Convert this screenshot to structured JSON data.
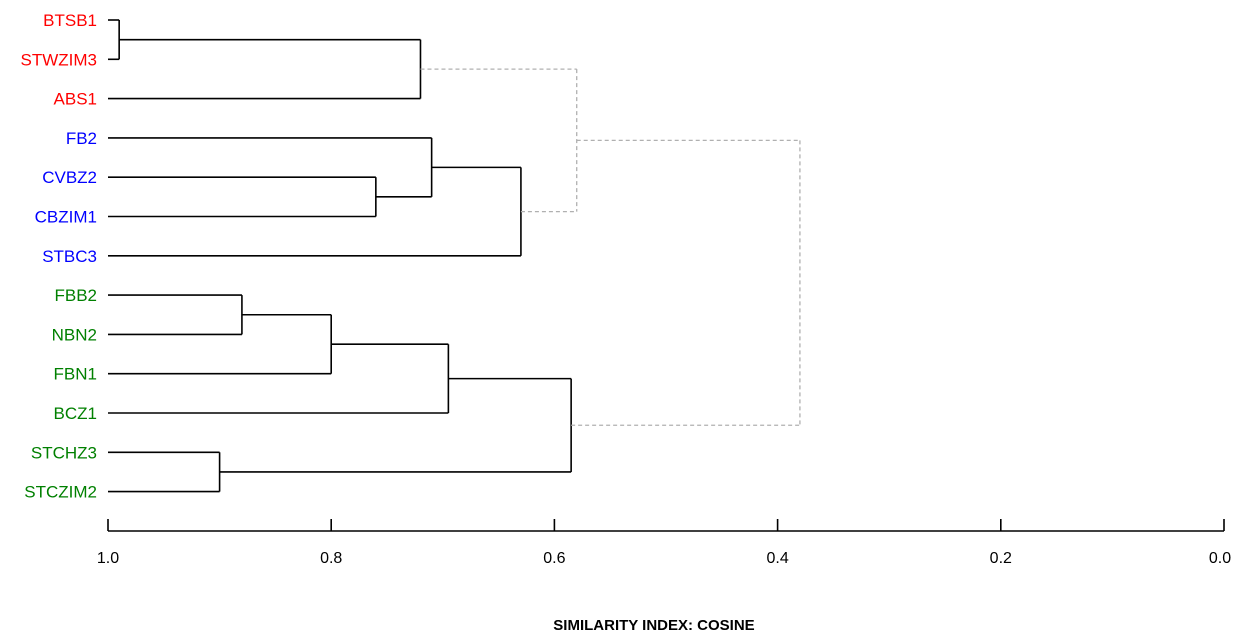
{
  "chart_data": {
    "type": "dendrogram",
    "xlabel": "SIMILARITY INDEX: COSINE",
    "xlim": [
      1.0,
      0.0
    ],
    "ticks": [
      "1.0",
      "0.8",
      "0.6",
      "0.4",
      "0.2",
      "0.0"
    ],
    "tick_values": [
      1.0,
      0.8,
      0.6,
      0.4,
      0.2,
      0.0
    ],
    "group_colors": {
      "red": "#ff0000",
      "blue": "#0000ff",
      "green": "#008000"
    },
    "line_color": "#000000",
    "dashed_color": "#b0b0b0",
    "leaves": [
      {
        "label": "BTSB1",
        "group": "red"
      },
      {
        "label": "STWZIM3",
        "group": "red"
      },
      {
        "label": "ABS1",
        "group": "red"
      },
      {
        "label": "FB2",
        "group": "blue"
      },
      {
        "label": "CVBZ2",
        "group": "blue"
      },
      {
        "label": "CBZIM1",
        "group": "blue"
      },
      {
        "label": "STBC3",
        "group": "blue"
      },
      {
        "label": "FBB2",
        "group": "green"
      },
      {
        "label": "NBN2",
        "group": "green"
      },
      {
        "label": "FBN1",
        "group": "green"
      },
      {
        "label": "BCZ1",
        "group": "green"
      },
      {
        "label": "STCHZ3",
        "group": "green"
      },
      {
        "label": "STCZIM2",
        "group": "green"
      }
    ],
    "merges": [
      {
        "id": "m1",
        "children": [
          0,
          1
        ],
        "similarity": 0.99,
        "style": "solid"
      },
      {
        "id": "m2",
        "children": [
          "m1",
          2
        ],
        "similarity": 0.72,
        "style": "solid"
      },
      {
        "id": "m3",
        "children": [
          4,
          5
        ],
        "similarity": 0.76,
        "style": "solid"
      },
      {
        "id": "m4",
        "children": [
          3,
          "m3"
        ],
        "similarity": 0.71,
        "style": "solid"
      },
      {
        "id": "m5",
        "children": [
          "m4",
          6
        ],
        "similarity": 0.63,
        "style": "solid"
      },
      {
        "id": "m6",
        "children": [
          7,
          8
        ],
        "similarity": 0.88,
        "style": "solid"
      },
      {
        "id": "m7",
        "children": [
          "m6",
          9
        ],
        "similarity": 0.8,
        "style": "solid"
      },
      {
        "id": "m8",
        "children": [
          "m7",
          10
        ],
        "similarity": 0.695,
        "style": "solid"
      },
      {
        "id": "m9",
        "children": [
          11,
          12
        ],
        "similarity": 0.9,
        "style": "solid"
      },
      {
        "id": "m10",
        "children": [
          "m8",
          "m9"
        ],
        "similarity": 0.585,
        "style": "solid"
      },
      {
        "id": "m11",
        "children": [
          "m2",
          "m5"
        ],
        "similarity": 0.58,
        "style": "dashed"
      },
      {
        "id": "m12",
        "children": [
          "m11",
          "m10"
        ],
        "similarity": 0.38,
        "style": "dashed"
      }
    ]
  }
}
